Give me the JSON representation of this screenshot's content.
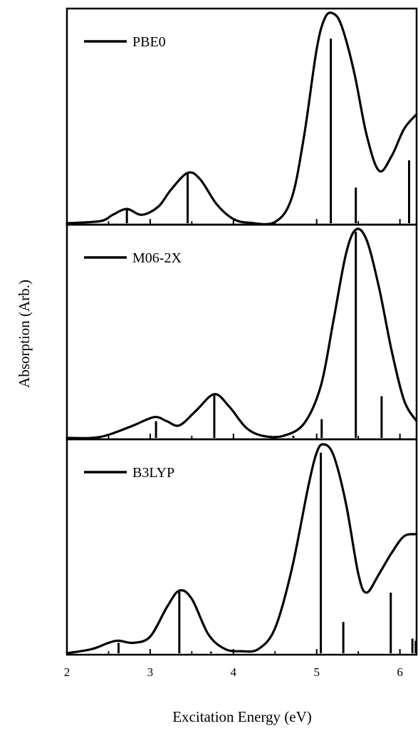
{
  "chart_data": {
    "type": "line",
    "xlabel": "Excitation Energy (eV)",
    "ylabel": "Absorption (Arb.)",
    "xlim": [
      2,
      6.2
    ],
    "xticks": [
      2,
      3,
      4,
      5,
      6
    ],
    "grid": false,
    "panels": [
      {
        "series": [
          {
            "name": "PBE0"
          }
        ],
        "legend_position": "top-left",
        "envelope": [
          [
            2.0,
            0.0
          ],
          [
            2.4,
            0.01
          ],
          [
            2.55,
            0.04
          ],
          [
            2.72,
            0.068
          ],
          [
            2.9,
            0.04
          ],
          [
            3.1,
            0.08
          ],
          [
            3.25,
            0.16
          ],
          [
            3.45,
            0.24
          ],
          [
            3.6,
            0.21
          ],
          [
            3.8,
            0.09
          ],
          [
            4.0,
            0.02
          ],
          [
            4.2,
            0.002
          ],
          [
            4.5,
            0.006
          ],
          [
            4.7,
            0.12
          ],
          [
            4.85,
            0.42
          ],
          [
            5.0,
            0.83
          ],
          [
            5.1,
            0.98
          ],
          [
            5.2,
            1.0
          ],
          [
            5.3,
            0.94
          ],
          [
            5.45,
            0.72
          ],
          [
            5.6,
            0.42
          ],
          [
            5.75,
            0.25
          ],
          [
            5.9,
            0.32
          ],
          [
            6.05,
            0.45
          ],
          [
            6.2,
            0.52
          ]
        ],
        "sticks": [
          [
            2.72,
            0.068
          ],
          [
            3.45,
            0.24
          ],
          [
            5.17,
            0.88
          ],
          [
            5.47,
            0.17
          ],
          [
            6.11,
            0.3
          ]
        ]
      },
      {
        "series": [
          {
            "name": "M06-2X"
          }
        ],
        "legend_position": "top-left",
        "envelope": [
          [
            2.0,
            0.0
          ],
          [
            2.3,
            0.0
          ],
          [
            2.5,
            0.015
          ],
          [
            2.8,
            0.06
          ],
          [
            3.05,
            0.1
          ],
          [
            3.2,
            0.08
          ],
          [
            3.35,
            0.06
          ],
          [
            3.55,
            0.13
          ],
          [
            3.77,
            0.21
          ],
          [
            3.95,
            0.15
          ],
          [
            4.15,
            0.05
          ],
          [
            4.35,
            0.01
          ],
          [
            4.6,
            0.01
          ],
          [
            4.85,
            0.07
          ],
          [
            5.05,
            0.25
          ],
          [
            5.2,
            0.56
          ],
          [
            5.35,
            0.88
          ],
          [
            5.47,
            1.0
          ],
          [
            5.6,
            0.95
          ],
          [
            5.75,
            0.72
          ],
          [
            5.9,
            0.42
          ],
          [
            6.05,
            0.18
          ],
          [
            6.2,
            0.08
          ]
        ],
        "sticks": [
          [
            3.07,
            0.08
          ],
          [
            3.77,
            0.21
          ],
          [
            4.72,
            0.01
          ],
          [
            5.06,
            0.09
          ],
          [
            5.47,
            0.99
          ],
          [
            5.78,
            0.2
          ]
        ]
      },
      {
        "series": [
          {
            "name": "B3LYP"
          }
        ],
        "legend_position": "top-left",
        "envelope": [
          [
            2.0,
            0.0
          ],
          [
            2.3,
            0.02
          ],
          [
            2.5,
            0.05
          ],
          [
            2.62,
            0.06
          ],
          [
            2.8,
            0.05
          ],
          [
            3.0,
            0.08
          ],
          [
            3.2,
            0.22
          ],
          [
            3.35,
            0.3
          ],
          [
            3.5,
            0.26
          ],
          [
            3.7,
            0.09
          ],
          [
            3.9,
            0.02
          ],
          [
            4.1,
            0.01
          ],
          [
            4.3,
            0.02
          ],
          [
            4.5,
            0.12
          ],
          [
            4.7,
            0.4
          ],
          [
            4.9,
            0.8
          ],
          [
            5.0,
            0.96
          ],
          [
            5.08,
            1.0
          ],
          [
            5.2,
            0.95
          ],
          [
            5.35,
            0.72
          ],
          [
            5.5,
            0.38
          ],
          [
            5.6,
            0.29
          ],
          [
            5.75,
            0.38
          ],
          [
            5.9,
            0.48
          ],
          [
            6.05,
            0.56
          ],
          [
            6.2,
            0.57
          ]
        ],
        "sticks": [
          [
            2.62,
            0.05
          ],
          [
            3.35,
            0.3
          ],
          [
            3.73,
            0.008
          ],
          [
            5.05,
            0.96
          ],
          [
            5.32,
            0.15
          ],
          [
            5.89,
            0.29
          ],
          [
            6.15,
            0.07
          ],
          [
            6.19,
            0.06
          ]
        ]
      }
    ]
  }
}
